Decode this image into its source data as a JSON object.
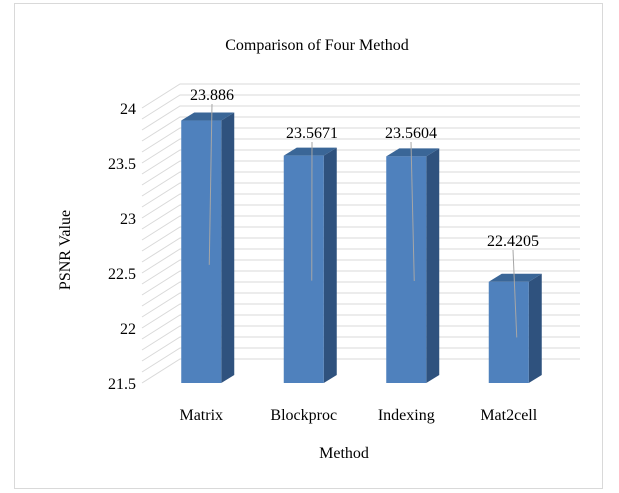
{
  "chart_data": {
    "type": "bar",
    "title": "Comparison of Four Method",
    "xlabel": "Method",
    "ylabel": "PSNR Value",
    "categories": [
      "Matrix",
      "Blockproc",
      "Indexing",
      "Mat2cell"
    ],
    "values": [
      23.886,
      23.5671,
      23.5604,
      22.4205
    ],
    "data_labels": [
      "23.886",
      "23.5671",
      "23.5604",
      "22.4205"
    ],
    "ylim": [
      21.5,
      24
    ],
    "yticks": [
      "21.5",
      "22",
      "22.5",
      "23",
      "23.5",
      "24"
    ],
    "grid": true,
    "legend": "none",
    "style": "3d-column",
    "colors": {
      "bar_front": "#4f81bd",
      "bar_side": "#2f527e",
      "bar_top": "#3a6697",
      "gridline": "#d9d9d9",
      "leader_line": "#a6a6a6"
    }
  }
}
